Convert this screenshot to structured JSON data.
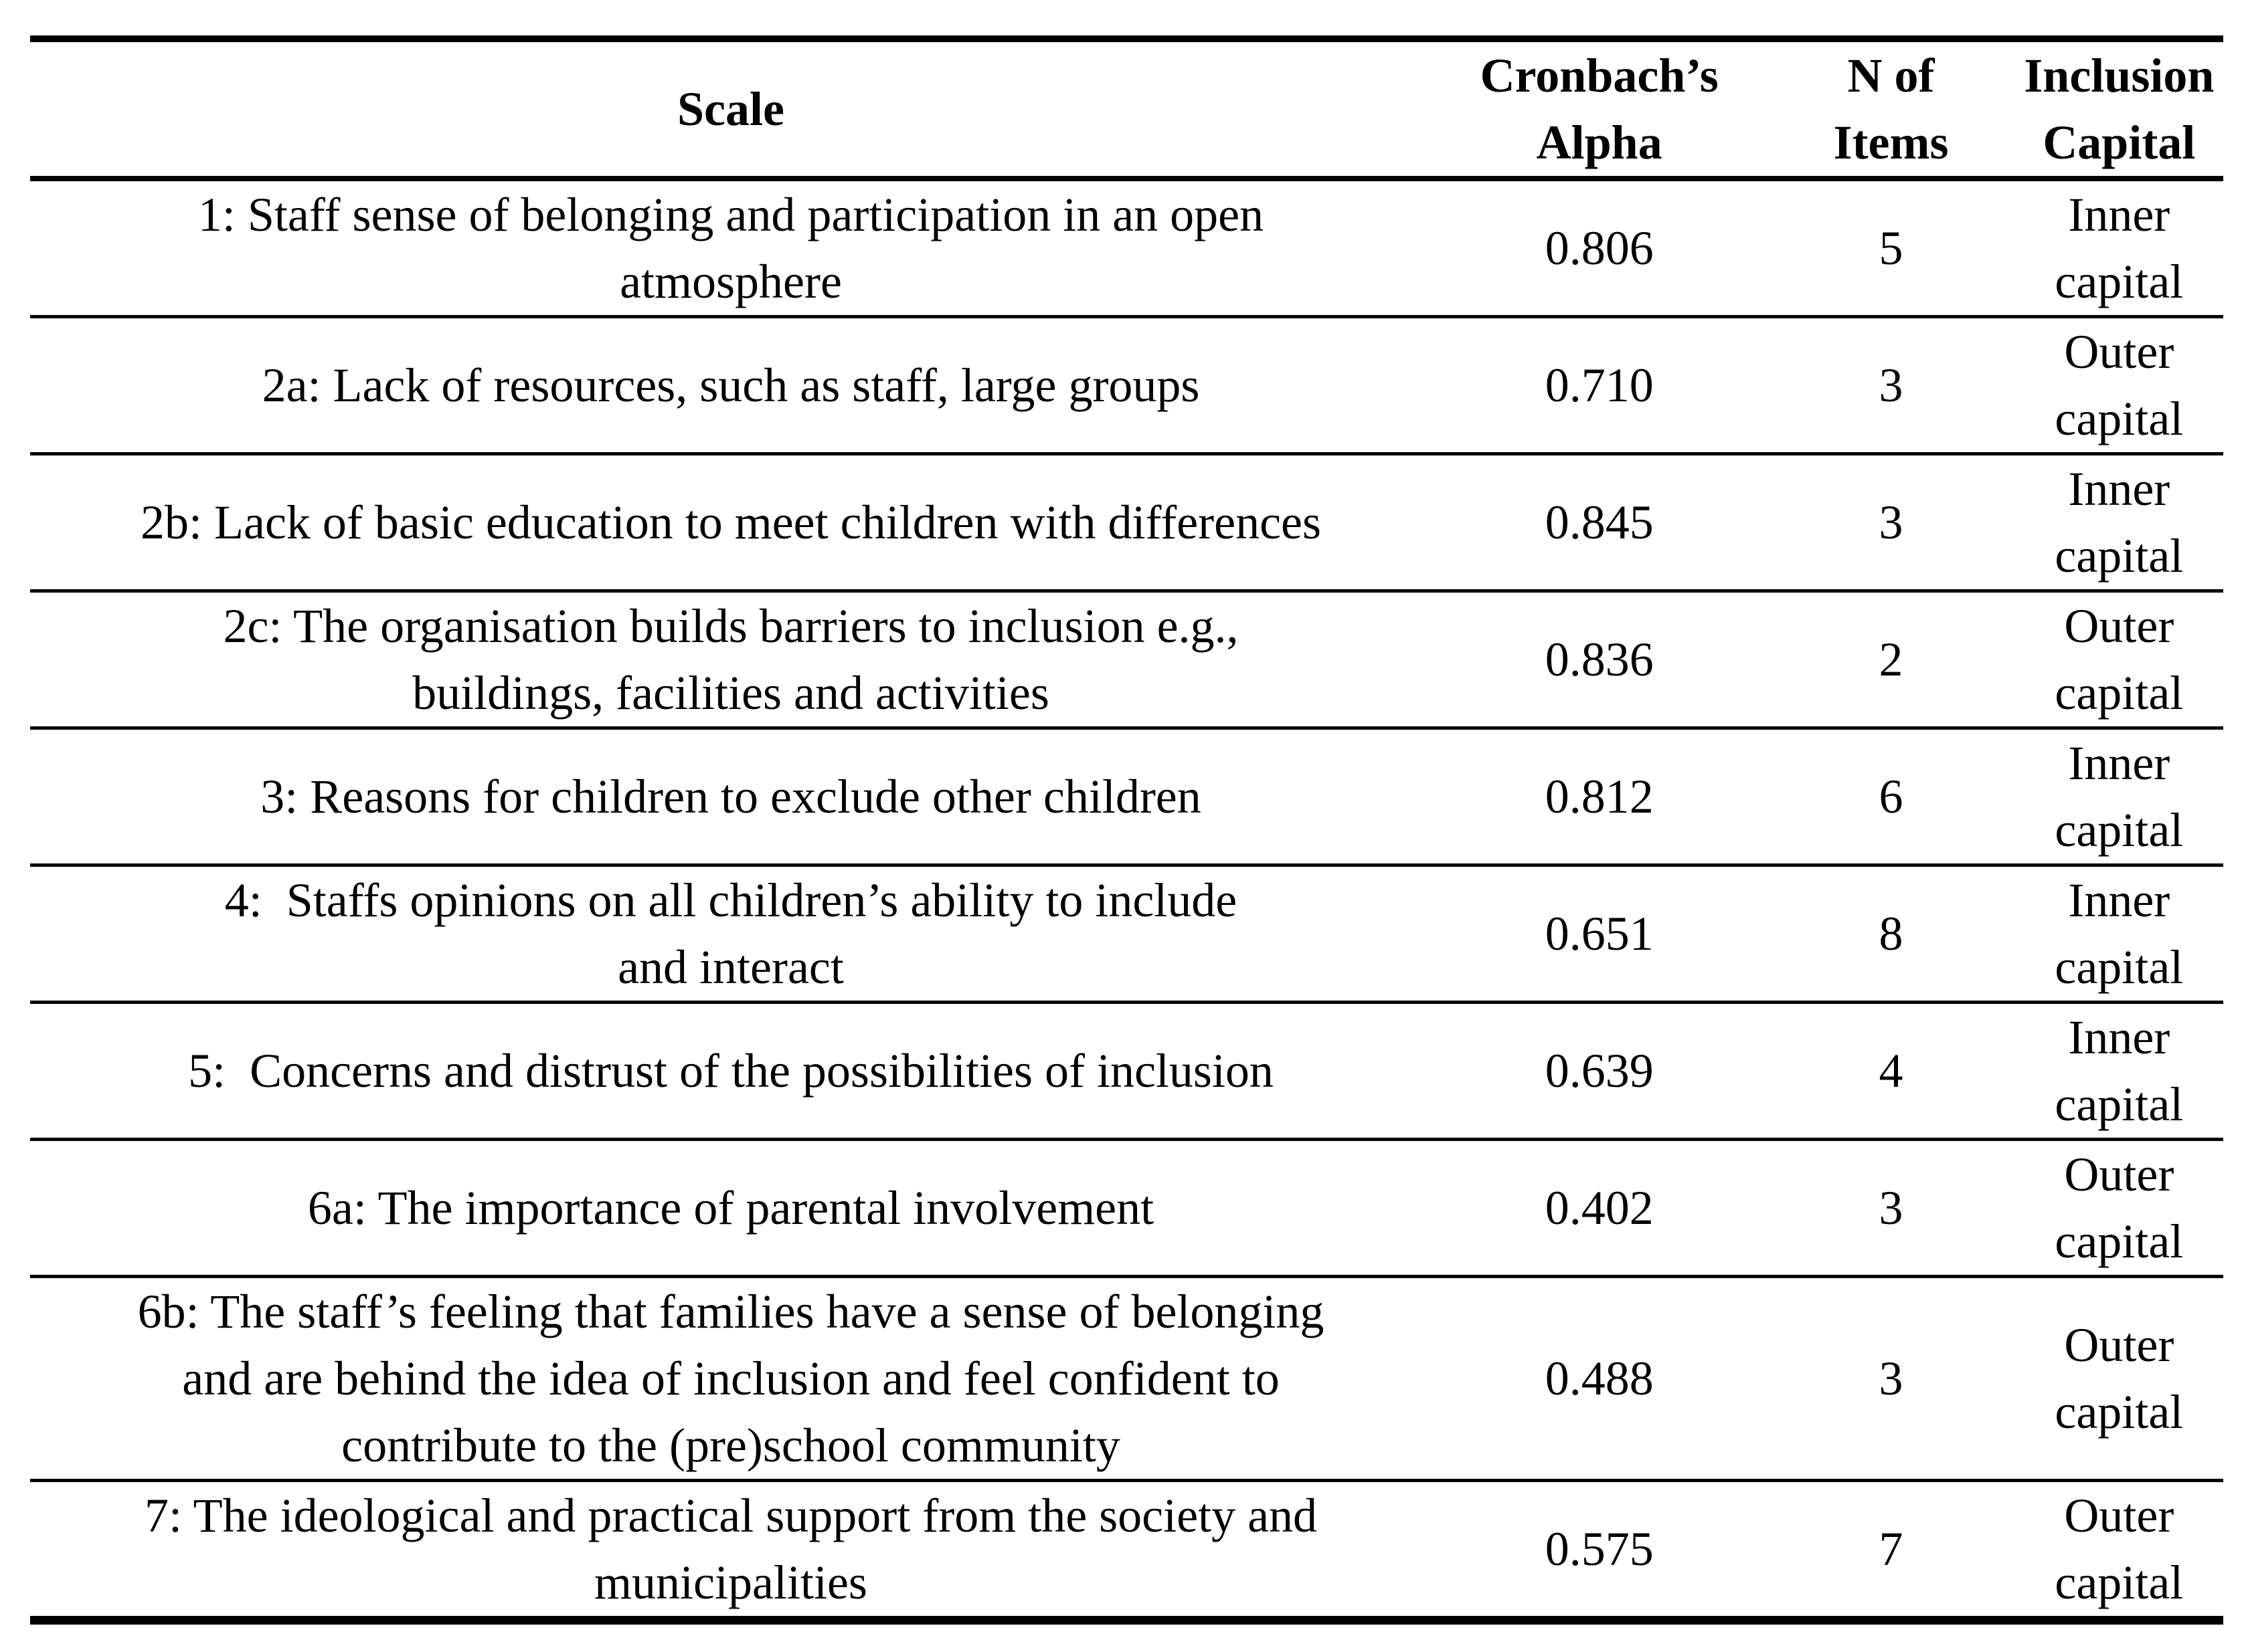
{
  "table": {
    "columns": [
      {
        "id": "scale",
        "label_lines": [
          "Scale"
        ]
      },
      {
        "id": "alpha",
        "label_lines": [
          "Cronbach’s",
          "Alpha"
        ]
      },
      {
        "id": "n-items",
        "label_lines": [
          "N of",
          "Items"
        ]
      },
      {
        "id": "capital",
        "label_lines": [
          "Inclusion",
          "Capital"
        ]
      }
    ],
    "rows": [
      {
        "scale_lines": [
          "1: Staff sense of belonging and participation in an open",
          "atmosphere"
        ],
        "alpha": "0.806",
        "n_items": "5",
        "capital_lines": [
          "Inner",
          "capital"
        ]
      },
      {
        "scale_lines": [
          "2a: Lack of resources, such as staff, large groups"
        ],
        "alpha": "0.710",
        "n_items": "3",
        "capital_lines": [
          "Outer",
          "capital"
        ]
      },
      {
        "scale_lines": [
          "2b: Lack of basic education to meet children with differences"
        ],
        "alpha": "0.845",
        "n_items": "3",
        "capital_lines": [
          "Inner",
          "capital"
        ]
      },
      {
        "scale_lines": [
          "2c: The organisation builds barriers to inclusion e.g.,",
          "buildings, facilities and activities"
        ],
        "alpha": "0.836",
        "n_items": "2",
        "capital_lines": [
          "Outer",
          "capital"
        ]
      },
      {
        "scale_lines": [
          "3: Reasons for children to exclude other children"
        ],
        "alpha": "0.812",
        "n_items": "6",
        "capital_lines": [
          "Inner",
          "capital"
        ]
      },
      {
        "scale_lines": [
          "4:  Staffs opinions on all children’s ability to include",
          "and interact"
        ],
        "alpha": "0.651",
        "n_items": "8",
        "capital_lines": [
          "Inner",
          "capital"
        ]
      },
      {
        "scale_lines": [
          "5:  Concerns and distrust of the possibilities of inclusion"
        ],
        "alpha": "0.639",
        "n_items": "4",
        "capital_lines": [
          "Inner",
          "capital"
        ]
      },
      {
        "scale_lines": [
          "6a: The importance of parental involvement"
        ],
        "alpha": "0.402",
        "n_items": "3",
        "capital_lines": [
          "Outer",
          "capital"
        ]
      },
      {
        "scale_lines": [
          "6b: The staff’s feeling that families have a sense of belonging",
          "and are behind the idea of inclusion and feel confident to",
          "contribute to the (pre)school community"
        ],
        "alpha": "0.488",
        "n_items": "3",
        "capital_lines": [
          "Outer",
          "capital"
        ]
      },
      {
        "scale_lines": [
          "7: The ideological and practical support from the society and",
          "municipalities"
        ],
        "alpha": "0.575",
        "n_items": "7",
        "capital_lines": [
          "Outer",
          "capital"
        ]
      }
    ]
  },
  "colors": {
    "text": "#000000",
    "background": "#ffffff",
    "border": "#000000"
  }
}
